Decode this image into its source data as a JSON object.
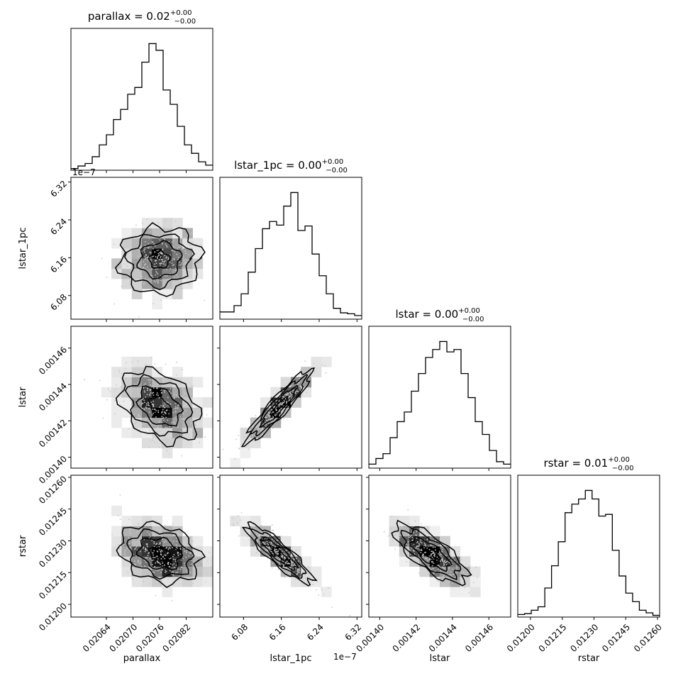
{
  "chart_data": {
    "type": "corner",
    "parameters": [
      {
        "name": "parallax",
        "axis_label": "parallax",
        "title_main": "parallax = 0.02",
        "title_plus": "+0.00",
        "title_minus": "−0.00",
        "range": [
          0.02056,
          0.02088
        ],
        "ticks": [
          0.02064,
          0.0207,
          0.02076,
          0.02082
        ],
        "tick_labels": [
          "0.02064",
          "0.02070",
          "0.02076",
          "0.02082"
        ],
        "offset_label": "",
        "hist_counts": [
          2,
          5,
          8,
          16,
          30,
          42,
          60,
          72,
          90,
          98,
          128,
          150,
          142,
          95,
          78,
          52,
          30,
          20,
          10,
          6
        ],
        "mean": 0.02076,
        "sigma": 4.5e-05
      },
      {
        "name": "lstar_1pc",
        "axis_label": "lstar_1pc",
        "title_main": "lstar_1pc = 0.00",
        "title_plus": "+0.00",
        "title_minus": "−0.00",
        "range": [
          6.03,
          6.33
        ],
        "ticks": [
          6.08,
          6.16,
          6.24,
          6.32
        ],
        "tick_labels": [
          "6.08",
          "6.16",
          "6.24",
          "6.32"
        ],
        "offset_label": "1e−7",
        "hist_counts": [
          8,
          8,
          15,
          28,
          52,
          78,
          100,
          108,
          104,
          125,
          140,
          98,
          103,
          72,
          48,
          28,
          12,
          7,
          6,
          4
        ],
        "mean": 6.155,
        "sigma": 0.035
      },
      {
        "name": "lstar",
        "axis_label": "lstar",
        "title_main": "lstar = 0.00",
        "title_plus": "+0.00",
        "title_minus": "−0.00",
        "range": [
          0.001394,
          0.001472
        ],
        "ticks": [
          0.0014,
          0.00142,
          0.00144,
          0.00146
        ],
        "tick_labels": [
          "0.00140",
          "0.00142",
          "0.00144",
          "0.00146"
        ],
        "offset_label": "",
        "hist_counts": [
          5,
          12,
          18,
          38,
          58,
          70,
          96,
          118,
          138,
          148,
          158,
          145,
          148,
          118,
          88,
          58,
          42,
          22,
          8,
          5
        ],
        "mean": 0.001428,
        "sigma": 1e-05
      },
      {
        "name": "rstar",
        "axis_label": "rstar",
        "title_main": "rstar = 0.01",
        "title_plus": "+0.00",
        "title_minus": "−0.00",
        "range": [
          0.01194,
          0.01261
        ],
        "ticks": [
          0.012,
          0.01215,
          0.0123,
          0.01245,
          0.0126
        ],
        "tick_labels": [
          "0.01200",
          "0.01215",
          "0.01230",
          "0.01245",
          "0.01260"
        ],
        "offset_label": "",
        "hist_counts": [
          3,
          4,
          8,
          12,
          34,
          60,
          88,
          122,
          132,
          138,
          148,
          138,
          118,
          120,
          78,
          48,
          28,
          18,
          8,
          5,
          2
        ],
        "mean": 0.01224,
        "sigma": 7e-05
      }
    ],
    "correlations": {
      "1-0": 0.05,
      "2-0": -0.35,
      "2-1": 0.93,
      "3-0": -0.25,
      "3-1": -0.88,
      "3-2": -0.75
    }
  }
}
